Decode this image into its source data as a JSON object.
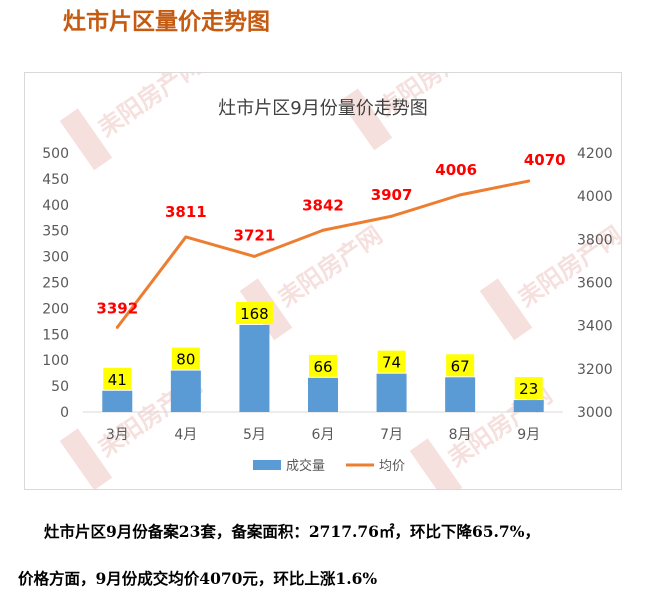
{
  "page_heading": "灶市片区量价走势图",
  "watermark_text": "耒阳房产网",
  "summary": {
    "line1": "灶市片区9月份备案23套，备案面积：2717.76㎡，环比下降65.7%，",
    "line2": "价格方面，9月份成交均价4070元，环比上涨1.6%"
  },
  "colors": {
    "bar": "#5b9bd5",
    "line": "#ed7d31",
    "bar_label_bg": "#ffff00",
    "line_label": "#ff0000",
    "watermark_red": "#c0392b",
    "heading": "#c55a11"
  },
  "chart_data": {
    "type": "bar+line",
    "title": "灶市片区9月份量价走势图",
    "categories": [
      "3月",
      "4月",
      "5月",
      "6月",
      "7月",
      "8月",
      "9月"
    ],
    "series": [
      {
        "name": "成交量",
        "type": "bar",
        "axis": "left",
        "values": [
          41,
          80,
          168,
          66,
          74,
          67,
          23
        ]
      },
      {
        "name": "均价",
        "type": "line",
        "axis": "right",
        "values": [
          3392,
          3811,
          3721,
          3842,
          3907,
          4006,
          4070
        ]
      }
    ],
    "y_left": {
      "min": 0,
      "max": 500,
      "step": 50
    },
    "y_right": {
      "min": 3000,
      "max": 4200,
      "step": 200
    },
    "grid": false,
    "legend_position": "bottom"
  }
}
